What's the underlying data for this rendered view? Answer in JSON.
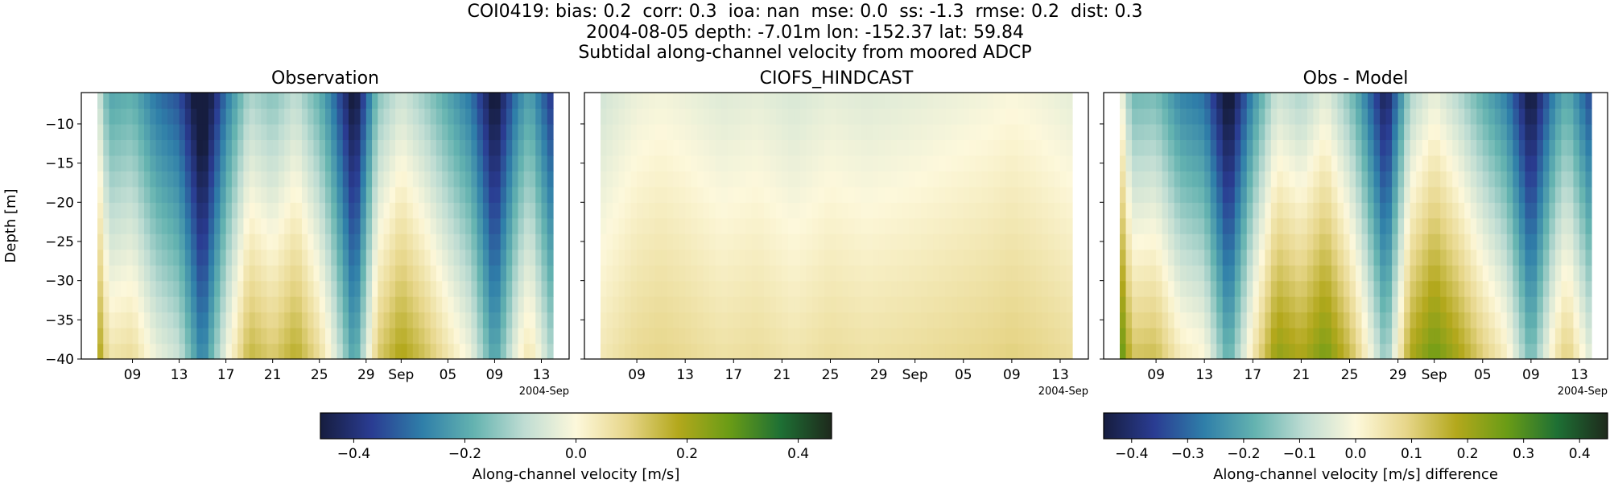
{
  "figure": {
    "title_lines": [
      "COI0419: bias: 0.2  corr: 0.3  ioa: nan  mse: 0.0  ss: -1.3  rmse: 0.2  dist: 0.3",
      "2004-08-05 depth: -7.01m lon: -152.37 lat: 59.84",
      "Subtidal along-channel velocity from moored ADCP"
    ]
  },
  "colors": {
    "cmap_stops": [
      "#161d3f",
      "#2a3c92",
      "#2f7fa9",
      "#64b3b0",
      "#c0ddd3",
      "#fdf8db",
      "#e7d68a",
      "#b3a81c",
      "#6a9c16",
      "#1e7034",
      "#1e291c"
    ],
    "axis": "#000000",
    "background": "#ffffff"
  },
  "chart_data": [
    {
      "type": "heatmap",
      "title": "Observation",
      "ylabel": "Depth [m]",
      "xlabel": "",
      "ylim": [
        -40,
        -6
      ],
      "x_range": [
        "2004-08-06",
        "2004-09-14"
      ],
      "x_ticks": [
        "09",
        "13",
        "17",
        "21",
        "25",
        "29",
        "Sep",
        "05",
        "09",
        "13"
      ],
      "x_offset_label": "2004-Sep",
      "y_ticks": [
        -10,
        -15,
        -20,
        -25,
        -30,
        -35,
        -40
      ],
      "depths": [
        -40,
        -38,
        -36,
        -34,
        -32,
        -30,
        -28,
        -26,
        -24,
        -22,
        -20,
        -18,
        -16,
        -14,
        -12,
        -10,
        -8,
        -6
      ],
      "time_profile": [
        [
          "2004-08-06",
          -0.06
        ],
        [
          "2004-08-07",
          -0.22
        ],
        [
          "2004-08-09",
          -0.2
        ],
        [
          "2004-08-11",
          -0.3
        ],
        [
          "2004-08-13",
          -0.35
        ],
        [
          "2004-08-15",
          -0.55
        ],
        [
          "2004-08-17",
          -0.3
        ],
        [
          "2004-08-19",
          -0.12
        ],
        [
          "2004-08-21",
          -0.16
        ],
        [
          "2004-08-23",
          -0.1
        ],
        [
          "2004-08-25",
          -0.2
        ],
        [
          "2004-08-26",
          -0.28
        ],
        [
          "2004-08-28",
          -0.5
        ],
        [
          "2004-08-30",
          -0.16
        ],
        [
          "2004-09-01",
          -0.08
        ],
        [
          "2004-09-03",
          -0.14
        ],
        [
          "2004-09-05",
          -0.22
        ],
        [
          "2004-09-07",
          -0.3
        ],
        [
          "2004-09-09",
          -0.5
        ],
        [
          "2004-09-11",
          -0.28
        ],
        [
          "2004-09-12",
          -0.22
        ],
        [
          "2004-09-14",
          -0.4
        ]
      ],
      "depth_scale": 0.27,
      "colorbar": {
        "label": "Along-channel velocity [m/s]",
        "range": [
          -0.46,
          0.46
        ],
        "ticks": [
          "−0.4",
          "−0.2",
          "0.0",
          "0.2",
          "0.4"
        ],
        "tick_values": [
          -0.4,
          -0.2,
          0.0,
          0.2,
          0.4
        ]
      }
    },
    {
      "type": "heatmap",
      "title": "CIOFS_HINDCAST",
      "xlabel": "",
      "ylim": [
        -40,
        -6
      ],
      "x_range": [
        "2004-08-06",
        "2004-09-14"
      ],
      "x_ticks": [
        "09",
        "13",
        "17",
        "21",
        "25",
        "29",
        "Sep",
        "05",
        "09",
        "13"
      ],
      "x_offset_label": "2004-Sep",
      "depths": [
        -40,
        -38,
        -36,
        -34,
        -32,
        -30,
        -28,
        -26,
        -24,
        -22,
        -20,
        -18,
        -16,
        -14,
        -12,
        -10,
        -8,
        -6
      ],
      "time_profile": [
        [
          "2004-08-06",
          -0.07
        ],
        [
          "2004-08-09",
          -0.03
        ],
        [
          "2004-08-11",
          -0.02
        ],
        [
          "2004-08-13",
          -0.03
        ],
        [
          "2004-08-16",
          -0.05
        ],
        [
          "2004-08-19",
          -0.04
        ],
        [
          "2004-08-22",
          -0.06
        ],
        [
          "2004-08-25",
          -0.04
        ],
        [
          "2004-08-28",
          -0.05
        ],
        [
          "2004-09-01",
          -0.04
        ],
        [
          "2004-09-04",
          -0.03
        ],
        [
          "2004-09-07",
          -0.02
        ],
        [
          "2004-09-09",
          -0.01
        ],
        [
          "2004-09-11",
          -0.02
        ],
        [
          "2004-09-14",
          -0.04
        ]
      ],
      "depth_scale": 0.11,
      "colorbar": "shared with Observation"
    },
    {
      "type": "heatmap",
      "title": "Obs - Model",
      "xlabel": "",
      "ylim": [
        -40,
        -6
      ],
      "x_range": [
        "2004-08-06",
        "2004-09-14"
      ],
      "x_ticks": [
        "09",
        "13",
        "17",
        "21",
        "25",
        "29",
        "Sep",
        "05",
        "09",
        "13"
      ],
      "x_offset_label": "2004-Sep",
      "depths": [
        -40,
        -38,
        -36,
        -34,
        -32,
        -30,
        -28,
        -26,
        -24,
        -22,
        -20,
        -18,
        -16,
        -14,
        -12,
        -10,
        -8,
        -6
      ],
      "time_profile": [
        [
          "2004-08-06",
          0.0
        ],
        [
          "2004-08-07",
          -0.18
        ],
        [
          "2004-08-09",
          -0.17
        ],
        [
          "2004-08-11",
          -0.27
        ],
        [
          "2004-08-13",
          -0.3
        ],
        [
          "2004-08-15",
          -0.5
        ],
        [
          "2004-08-17",
          -0.26
        ],
        [
          "2004-08-19",
          -0.08
        ],
        [
          "2004-08-21",
          -0.12
        ],
        [
          "2004-08-23",
          -0.05
        ],
        [
          "2004-08-25",
          -0.16
        ],
        [
          "2004-08-26",
          -0.24
        ],
        [
          "2004-08-28",
          -0.45
        ],
        [
          "2004-08-30",
          -0.12
        ],
        [
          "2004-09-01",
          -0.04
        ],
        [
          "2004-09-03",
          -0.11
        ],
        [
          "2004-09-05",
          -0.2
        ],
        [
          "2004-09-07",
          -0.28
        ],
        [
          "2004-09-09",
          -0.48
        ],
        [
          "2004-09-11",
          -0.26
        ],
        [
          "2004-09-12",
          -0.2
        ],
        [
          "2004-09-14",
          -0.36
        ]
      ],
      "depth_scale": 0.3,
      "colorbar": {
        "label": "Along-channel velocity [m/s] difference",
        "range": [
          -0.45,
          0.45
        ],
        "ticks": [
          "−0.4",
          "−0.3",
          "−0.2",
          "−0.1",
          "0.0",
          "0.1",
          "0.2",
          "0.3",
          "0.4"
        ],
        "tick_values": [
          -0.4,
          -0.3,
          -0.2,
          -0.1,
          0.0,
          0.1,
          0.2,
          0.3,
          0.4
        ]
      }
    }
  ]
}
